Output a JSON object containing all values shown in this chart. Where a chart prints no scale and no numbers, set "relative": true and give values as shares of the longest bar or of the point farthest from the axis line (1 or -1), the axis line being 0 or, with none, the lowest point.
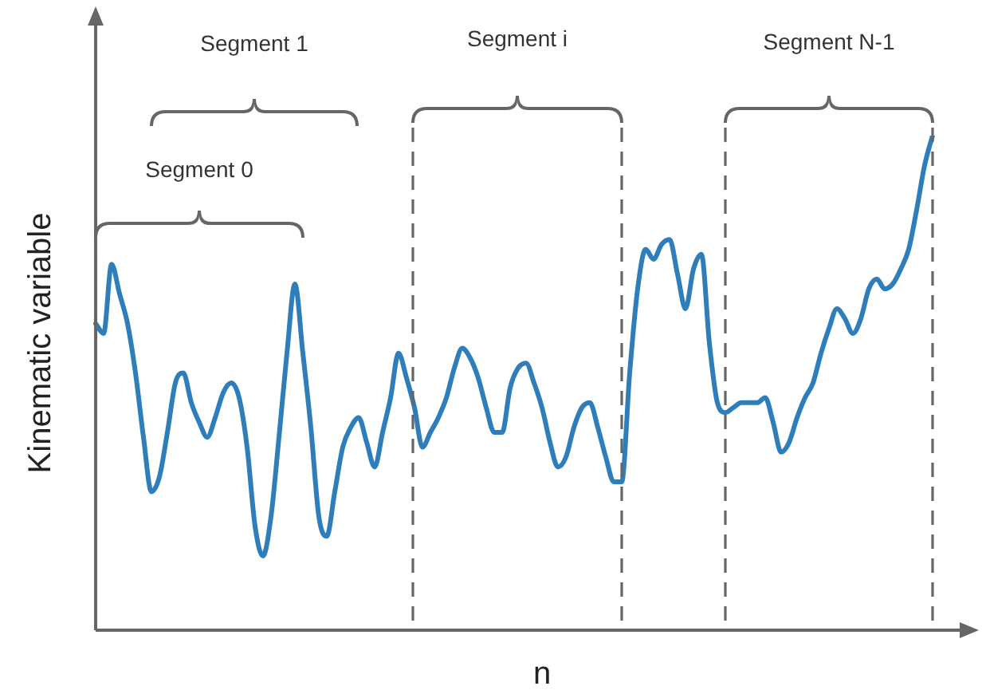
{
  "chart_data": {
    "type": "line",
    "relative": true,
    "xlabel": "n",
    "ylabel": "Kinematic variable",
    "annotations": [
      "Segment 0",
      "Segment 1",
      "Segment i",
      "Segment N-1"
    ],
    "categories": [
      null,
      null,
      null,
      null,
      null,
      null,
      null,
      null,
      null,
      null,
      null,
      null,
      null,
      null,
      null,
      null,
      null,
      null,
      null,
      null,
      null,
      null,
      null,
      null,
      null,
      null,
      null,
      null,
      null,
      null,
      null,
      null,
      null,
      null,
      null,
      null,
      null,
      null,
      null,
      null,
      null,
      null,
      null,
      null,
      null,
      null,
      null,
      null,
      null,
      null,
      null,
      null,
      null,
      null,
      null,
      null,
      null,
      null,
      null,
      null,
      null,
      null,
      null,
      null,
      null,
      null,
      null,
      null,
      null,
      null,
      null,
      null,
      null,
      null,
      null,
      null,
      null,
      null,
      null,
      null,
      null,
      null,
      null,
      null,
      null,
      null,
      null,
      null,
      null,
      null,
      null,
      null,
      null,
      null,
      null,
      null,
      null,
      null,
      null,
      null,
      null,
      null,
      null,
      null,
      null,
      null
    ],
    "series": [
      {
        "color": "#2e7ebc",
        "values": [
          0.62,
          0.6,
          0.74,
          0.68,
          0.62,
          0.52,
          0.39,
          0.28,
          0.31,
          0.4,
          0.5,
          0.52,
          0.46,
          0.42,
          0.39,
          0.43,
          0.48,
          0.5,
          0.47,
          0.37,
          0.21,
          0.15,
          0.23,
          0.39,
          0.56,
          0.7,
          0.56,
          0.41,
          0.23,
          0.19,
          0.28,
          0.37,
          0.41,
          0.43,
          0.38,
          0.33,
          0.4,
          0.47,
          0.56,
          0.51,
          0.45,
          0.37,
          0.4,
          0.43,
          0.47,
          0.53,
          0.57,
          0.55,
          0.51,
          0.45,
          0.4,
          0.4,
          0.49,
          0.53,
          0.54,
          0.5,
          0.45,
          0.38,
          0.33,
          0.35,
          0.41,
          0.45,
          0.46,
          0.41,
          0.35,
          0.3,
          0.3,
          0.52,
          0.69,
          0.77,
          0.75,
          0.78,
          0.79,
          0.72,
          0.65,
          0.73,
          0.76,
          0.58,
          0.46,
          0.44,
          0.45,
          0.46,
          0.46,
          0.46,
          0.47,
          0.42,
          0.36,
          0.38,
          0.43,
          0.47,
          0.5,
          0.56,
          0.61,
          0.65,
          0.63,
          0.6,
          0.63,
          0.69,
          0.71,
          0.69,
          0.7,
          0.73,
          0.77,
          0.85,
          0.94,
          1.0
        ]
      }
    ],
    "grid": false,
    "legend": false,
    "marker": "none",
    "line_style": "solid"
  }
}
